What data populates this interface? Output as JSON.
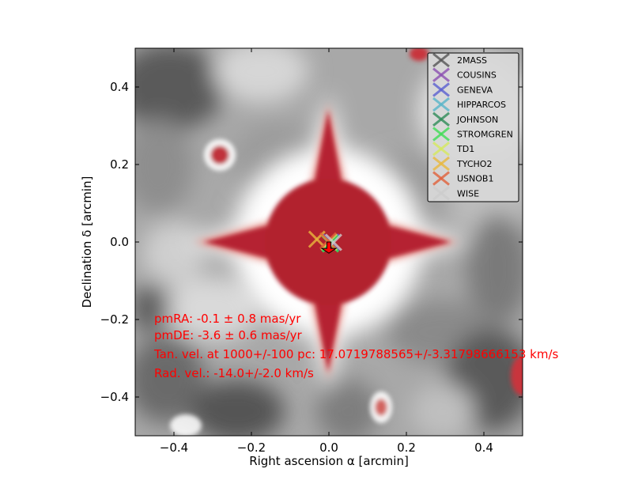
{
  "chart_data": {
    "type": "scatter",
    "title": "",
    "xlabel": "Right ascension α [arcmin]",
    "ylabel": "Declination δ [arcmin]",
    "xlim": [
      -0.5,
      0.5
    ],
    "ylim": [
      -0.5,
      0.5
    ],
    "grid": false,
    "legend_position": "top-right",
    "background": "grayscale sky image with red saturated star",
    "xticks": [
      {
        "value": -0.4,
        "label": "−0.4"
      },
      {
        "value": -0.2,
        "label": "−0.2"
      },
      {
        "value": 0.0,
        "label": "0.0"
      },
      {
        "value": 0.2,
        "label": "0.2"
      },
      {
        "value": 0.4,
        "label": "0.4"
      }
    ],
    "yticks": [
      {
        "value": -0.4,
        "label": "−0.4"
      },
      {
        "value": -0.2,
        "label": "−0.2"
      },
      {
        "value": 0.0,
        "label": "0.0"
      },
      {
        "value": 0.2,
        "label": "0.2"
      },
      {
        "value": 0.4,
        "label": "0.4"
      }
    ],
    "series": [
      {
        "name": "2MASS",
        "x": 0.003,
        "y": 0.0,
        "color": "#555555"
      },
      {
        "name": "COUSINS",
        "x": 0.005,
        "y": 0.0,
        "color": "#8b4fb0"
      },
      {
        "name": "GENEVA",
        "x": 0.006,
        "y": -0.002,
        "color": "#5a5fd0"
      },
      {
        "name": "HIPPARCOS",
        "x": 0.003,
        "y": -0.003,
        "color": "#56b4c8"
      },
      {
        "name": "JOHNSON",
        "x": 0.003,
        "y": -0.004,
        "color": "#2e8b57"
      },
      {
        "name": "STROMGREN",
        "x": 0.004,
        "y": -0.005,
        "color": "#3ddc54"
      },
      {
        "name": "TD1",
        "x": 0.0,
        "y": 0.0,
        "color": "#d4e85c"
      },
      {
        "name": "TYCHO2",
        "x": -0.031,
        "y": 0.007,
        "color": "#e8b83c"
      },
      {
        "name": "USNOB1",
        "x": -0.002,
        "y": 0.003,
        "color": "#e0603a"
      },
      {
        "name": "WISE",
        "x": 0.012,
        "y": -0.001,
        "color": "#cccccc"
      }
    ],
    "proper_motion_arrow": {
      "from": [
        0.0,
        0.0
      ],
      "to": [
        -0.0001,
        -0.0036
      ],
      "color": "#ff0000"
    },
    "annotations": [
      "pmRA: -0.1 $\\pm$ 0.8 mas/yr",
      "pmDE: -3.6 $\\pm$ 0.6 mas/yr",
      "Tan. vel. at 1000+/-100 pc: 17.0719788565+/-3.31798666153 km/s",
      "Rad. vel.: -14.0+/-2.0 km/s"
    ],
    "annotation_display": [
      "pmRA: -0.1 ± 0.8 mas/yr",
      "pmDE: -3.6 ± 0.6 mas/yr",
      "Tan. vel. at 1000+/-100 pc: 17.0719788565+/-3.31798666153 km/s",
      "Rad. vel.: -14.0+/-2.0 km/s"
    ],
    "annotation_color": "#ff0000"
  }
}
